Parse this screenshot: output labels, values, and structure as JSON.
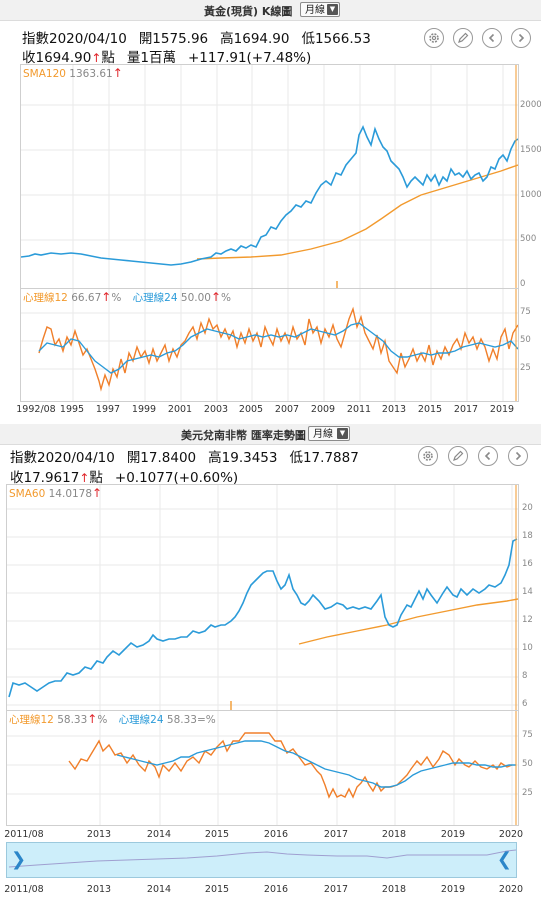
{
  "gold": {
    "title": "黃金(現貨) K線圖",
    "period": "月線",
    "index_label": "指數2020/04/10",
    "open": "開1575.96",
    "high": "高1694.90",
    "low": "低1566.53",
    "close": "收1694.90",
    "close_unit": "點",
    "volume": "量1百萬",
    "change": "+117.91(+7.48%)",
    "sma_label": "SMA120",
    "sma_value": "1363.61",
    "psy12_label": "心理線12",
    "psy12_value": "66.67",
    "psy24_label": "心理線24",
    "psy24_value": "50.00",
    "pct": "%",
    "up_arrow": "↑",
    "y_ticks": [
      "2000",
      "1500",
      "1000",
      "500",
      "0"
    ],
    "psy_ticks": [
      "75",
      "50",
      "25"
    ],
    "x_ticks": [
      "1992/08",
      "1995",
      "1997",
      "1999",
      "2001",
      "2003",
      "2005",
      "2007",
      "2009",
      "2011",
      "2013",
      "2015",
      "2017",
      "2019"
    ]
  },
  "usdzar": {
    "title": "美元兌南非幣 匯率走勢圖",
    "period": "月線",
    "index_label": "指數2020/04/10",
    "open": "開17.8400",
    "high": "高19.3453",
    "low": "低17.7887",
    "close": "收17.9617",
    "close_unit": "點",
    "change": "+0.1077(+0.60%)",
    "sma_label": "SMA60",
    "sma_value": "14.0178",
    "psy12_label": "心理線12",
    "psy12_value": "58.33",
    "psy24_label": "心理線24",
    "psy24_value": "58.33",
    "pct": "%",
    "up_arrow": "↑",
    "eq_sign": "=",
    "y_ticks": [
      "20",
      "18",
      "16",
      "14",
      "12",
      "10",
      "8",
      "6"
    ],
    "psy_ticks": [
      "75",
      "50",
      "25"
    ],
    "x_ticks": [
      "2011/08",
      "2013",
      "2014",
      "2015",
      "2016",
      "2017",
      "2018",
      "2019",
      "2020"
    ],
    "nav_x_ticks": [
      "2011/08",
      "2013",
      "2014",
      "2015",
      "2016",
      "2017",
      "2018",
      "2019",
      "2020"
    ]
  },
  "colors": {
    "price": "#2b9bd9",
    "sma": "#f29a2e",
    "psy12": "#f07f2a",
    "psy24": "#2b9bd9",
    "cursor": "#f29a2e",
    "up": "#e0262b"
  },
  "icons": [
    "settings-icon",
    "pen-icon",
    "prev-icon",
    "next-icon"
  ]
}
